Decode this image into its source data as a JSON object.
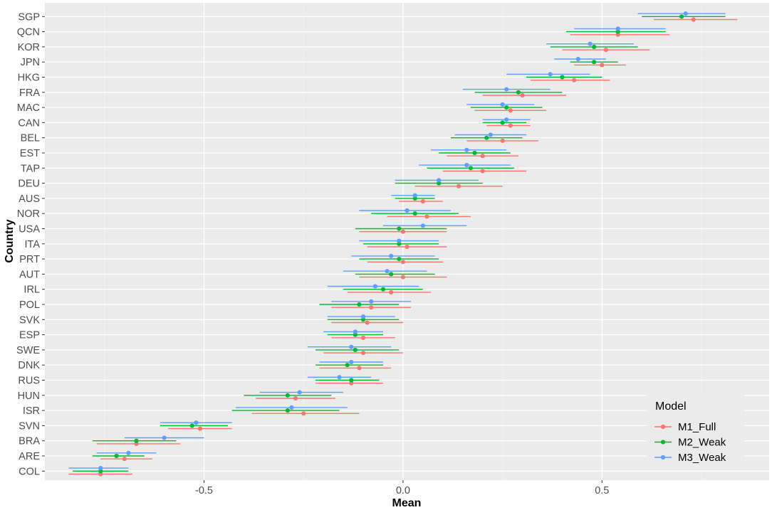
{
  "chart_data": {
    "type": "interval",
    "xlabel": "Mean",
    "ylabel": "Country",
    "xlim": [
      -0.9,
      0.92
    ],
    "x_ticks": [
      -0.5,
      0.0,
      0.5
    ],
    "x_tick_labels": [
      "-0.5",
      "0.0",
      "0.5"
    ],
    "grid": true,
    "legend": {
      "title": "Model",
      "position": "bottom-right"
    },
    "categories": [
      "COL",
      "ARE",
      "BRA",
      "SVN",
      "ISR",
      "HUN",
      "RUS",
      "DNK",
      "SWE",
      "ESP",
      "SVK",
      "POL",
      "IRL",
      "AUT",
      "PRT",
      "ITA",
      "USA",
      "NOR",
      "AUS",
      "DEU",
      "TAP",
      "EST",
      "BEL",
      "CAN",
      "MAC",
      "FRA",
      "HKG",
      "JPN",
      "KOR",
      "QCN",
      "SGP"
    ],
    "series": [
      {
        "name": "M1_Full",
        "color": "#F8766D",
        "points": [
          {
            "mean": -0.76,
            "lo": -0.84,
            "hi": -0.68
          },
          {
            "mean": -0.7,
            "lo": -0.76,
            "hi": -0.63
          },
          {
            "mean": -0.67,
            "lo": -0.77,
            "hi": -0.56
          },
          {
            "mean": -0.51,
            "lo": -0.59,
            "hi": -0.43
          },
          {
            "mean": -0.25,
            "lo": -0.38,
            "hi": -0.11
          },
          {
            "mean": -0.27,
            "lo": -0.37,
            "hi": -0.17
          },
          {
            "mean": -0.13,
            "lo": -0.22,
            "hi": -0.05
          },
          {
            "mean": -0.11,
            "lo": -0.21,
            "hi": -0.03
          },
          {
            "mean": -0.1,
            "lo": -0.2,
            "hi": 0.0
          },
          {
            "mean": -0.1,
            "lo": -0.18,
            "hi": -0.02
          },
          {
            "mean": -0.09,
            "lo": -0.18,
            "hi": 0.0
          },
          {
            "mean": -0.08,
            "lo": -0.18,
            "hi": 0.02
          },
          {
            "mean": -0.03,
            "lo": -0.14,
            "hi": 0.07
          },
          {
            "mean": 0.0,
            "lo": -0.11,
            "hi": 0.11
          },
          {
            "mean": 0.0,
            "lo": -0.09,
            "hi": 0.1
          },
          {
            "mean": 0.01,
            "lo": -0.09,
            "hi": 0.11
          },
          {
            "mean": 0.0,
            "lo": -0.11,
            "hi": 0.11
          },
          {
            "mean": 0.06,
            "lo": -0.04,
            "hi": 0.17
          },
          {
            "mean": 0.05,
            "lo": -0.01,
            "hi": 0.1
          },
          {
            "mean": 0.14,
            "lo": 0.03,
            "hi": 0.25
          },
          {
            "mean": 0.2,
            "lo": 0.1,
            "hi": 0.31
          },
          {
            "mean": 0.2,
            "lo": 0.11,
            "hi": 0.29
          },
          {
            "mean": 0.25,
            "lo": 0.16,
            "hi": 0.34
          },
          {
            "mean": 0.27,
            "lo": 0.21,
            "hi": 0.32
          },
          {
            "mean": 0.27,
            "lo": 0.18,
            "hi": 0.36
          },
          {
            "mean": 0.3,
            "lo": 0.2,
            "hi": 0.41
          },
          {
            "mean": 0.43,
            "lo": 0.32,
            "hi": 0.52
          },
          {
            "mean": 0.5,
            "lo": 0.43,
            "hi": 0.56
          },
          {
            "mean": 0.51,
            "lo": 0.4,
            "hi": 0.62
          },
          {
            "mean": 0.54,
            "lo": 0.42,
            "hi": 0.67
          },
          {
            "mean": 0.73,
            "lo": 0.63,
            "hi": 0.84
          }
        ]
      },
      {
        "name": "M2_Weak",
        "color": "#00BA38",
        "points": [
          {
            "mean": -0.76,
            "lo": -0.83,
            "hi": -0.69
          },
          {
            "mean": -0.72,
            "lo": -0.78,
            "hi": -0.65
          },
          {
            "mean": -0.67,
            "lo": -0.78,
            "hi": -0.57
          },
          {
            "mean": -0.53,
            "lo": -0.61,
            "hi": -0.44
          },
          {
            "mean": -0.29,
            "lo": -0.43,
            "hi": -0.16
          },
          {
            "mean": -0.29,
            "lo": -0.4,
            "hi": -0.18
          },
          {
            "mean": -0.13,
            "lo": -0.22,
            "hi": -0.06
          },
          {
            "mean": -0.14,
            "lo": -0.22,
            "hi": -0.05
          },
          {
            "mean": -0.12,
            "lo": -0.22,
            "hi": -0.01
          },
          {
            "mean": -0.12,
            "lo": -0.19,
            "hi": -0.05
          },
          {
            "mean": -0.1,
            "lo": -0.19,
            "hi": -0.01
          },
          {
            "mean": -0.11,
            "lo": -0.21,
            "hi": -0.01
          },
          {
            "mean": -0.05,
            "lo": -0.15,
            "hi": 0.05
          },
          {
            "mean": -0.03,
            "lo": -0.12,
            "hi": 0.08
          },
          {
            "mean": -0.01,
            "lo": -0.11,
            "hi": 0.09
          },
          {
            "mean": -0.01,
            "lo": -0.1,
            "hi": 0.09
          },
          {
            "mean": -0.01,
            "lo": -0.12,
            "hi": 0.11
          },
          {
            "mean": 0.03,
            "lo": -0.08,
            "hi": 0.14
          },
          {
            "mean": 0.03,
            "lo": -0.02,
            "hi": 0.08
          },
          {
            "mean": 0.09,
            "lo": -0.02,
            "hi": 0.2
          },
          {
            "mean": 0.17,
            "lo": 0.06,
            "hi": 0.28
          },
          {
            "mean": 0.18,
            "lo": 0.09,
            "hi": 0.27
          },
          {
            "mean": 0.21,
            "lo": 0.12,
            "hi": 0.3
          },
          {
            "mean": 0.25,
            "lo": 0.2,
            "hi": 0.31
          },
          {
            "mean": 0.26,
            "lo": 0.17,
            "hi": 0.35
          },
          {
            "mean": 0.29,
            "lo": 0.18,
            "hi": 0.4
          },
          {
            "mean": 0.4,
            "lo": 0.31,
            "hi": 0.5
          },
          {
            "mean": 0.48,
            "lo": 0.42,
            "hi": 0.54
          },
          {
            "mean": 0.48,
            "lo": 0.37,
            "hi": 0.59
          },
          {
            "mean": 0.54,
            "lo": 0.41,
            "hi": 0.66
          },
          {
            "mean": 0.7,
            "lo": 0.6,
            "hi": 0.81
          }
        ]
      },
      {
        "name": "M3_Weak",
        "color": "#619CFF",
        "points": [
          {
            "mean": -0.76,
            "lo": -0.84,
            "hi": -0.69
          },
          {
            "mean": -0.69,
            "lo": -0.77,
            "hi": -0.62
          },
          {
            "mean": -0.6,
            "lo": -0.7,
            "hi": -0.5
          },
          {
            "mean": -0.52,
            "lo": -0.61,
            "hi": -0.43
          },
          {
            "mean": -0.28,
            "lo": -0.42,
            "hi": -0.14
          },
          {
            "mean": -0.26,
            "lo": -0.36,
            "hi": -0.15
          },
          {
            "mean": -0.16,
            "lo": -0.24,
            "hi": -0.08
          },
          {
            "mean": -0.13,
            "lo": -0.21,
            "hi": -0.05
          },
          {
            "mean": -0.13,
            "lo": -0.24,
            "hi": -0.03
          },
          {
            "mean": -0.12,
            "lo": -0.2,
            "hi": -0.05
          },
          {
            "mean": -0.1,
            "lo": -0.19,
            "hi": -0.02
          },
          {
            "mean": -0.08,
            "lo": -0.18,
            "hi": 0.02
          },
          {
            "mean": -0.07,
            "lo": -0.19,
            "hi": 0.04
          },
          {
            "mean": -0.04,
            "lo": -0.15,
            "hi": 0.06
          },
          {
            "mean": -0.03,
            "lo": -0.13,
            "hi": 0.08
          },
          {
            "mean": -0.01,
            "lo": -0.11,
            "hi": 0.09
          },
          {
            "mean": 0.05,
            "lo": -0.05,
            "hi": 0.16
          },
          {
            "mean": 0.01,
            "lo": -0.11,
            "hi": 0.12
          },
          {
            "mean": 0.03,
            "lo": -0.03,
            "hi": 0.08
          },
          {
            "mean": 0.09,
            "lo": -0.02,
            "hi": 0.19
          },
          {
            "mean": 0.16,
            "lo": 0.04,
            "hi": 0.27
          },
          {
            "mean": 0.16,
            "lo": 0.07,
            "hi": 0.26
          },
          {
            "mean": 0.22,
            "lo": 0.13,
            "hi": 0.31
          },
          {
            "mean": 0.26,
            "lo": 0.2,
            "hi": 0.32
          },
          {
            "mean": 0.25,
            "lo": 0.16,
            "hi": 0.33
          },
          {
            "mean": 0.26,
            "lo": 0.15,
            "hi": 0.37
          },
          {
            "mean": 0.37,
            "lo": 0.26,
            "hi": 0.47
          },
          {
            "mean": 0.44,
            "lo": 0.38,
            "hi": 0.51
          },
          {
            "mean": 0.47,
            "lo": 0.36,
            "hi": 0.58
          },
          {
            "mean": 0.54,
            "lo": 0.43,
            "hi": 0.66
          },
          {
            "mean": 0.71,
            "lo": 0.59,
            "hi": 0.81
          }
        ]
      }
    ]
  }
}
